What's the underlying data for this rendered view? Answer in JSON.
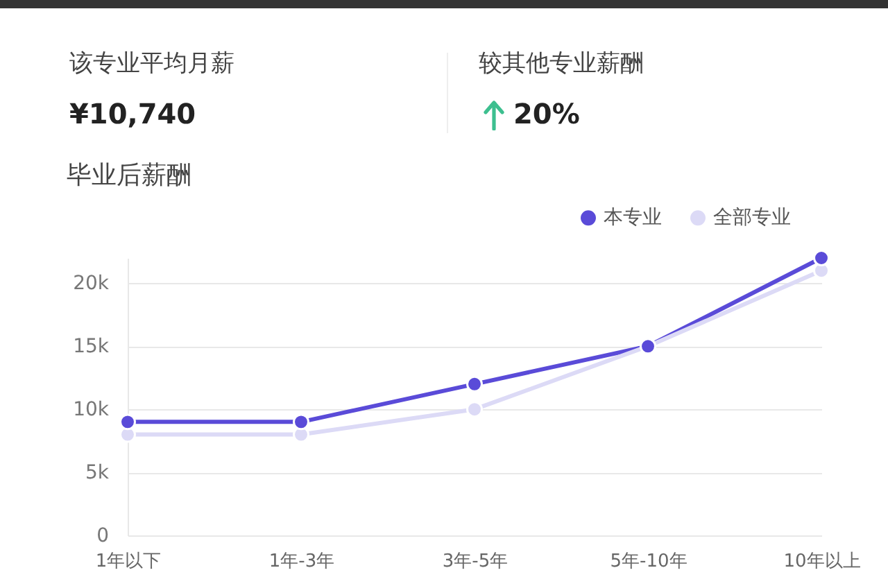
{
  "chart_data": {
    "type": "line",
    "title": "毕业后薪酬",
    "annotations": [
      "该专业平均月薪",
      "¥10,740",
      "较其他专业薪酬",
      "20%"
    ],
    "categories": [
      "1年以下",
      "1年-3年",
      "3年-5年",
      "5年-10年",
      "10年以上"
    ],
    "series": [
      {
        "name": "本专业",
        "color": "#5a4bd8",
        "values": [
          9000,
          9000,
          12000,
          15000,
          22000
        ]
      },
      {
        "name": "全部专业",
        "color": "#dcdaf6",
        "values": [
          8000,
          8000,
          10000,
          15000,
          21000
        ]
      }
    ],
    "ylim": [
      0,
      22000
    ],
    "yticks": [
      0,
      {
        "value": 5000,
        "label": "5k"
      },
      {
        "value": 10000,
        "label": "10k"
      },
      {
        "value": 15000,
        "label": "15k"
      },
      {
        "value": 20000,
        "label": "20k"
      }
    ],
    "grid": "y",
    "legend": "top right",
    "marker": "circle"
  }
}
